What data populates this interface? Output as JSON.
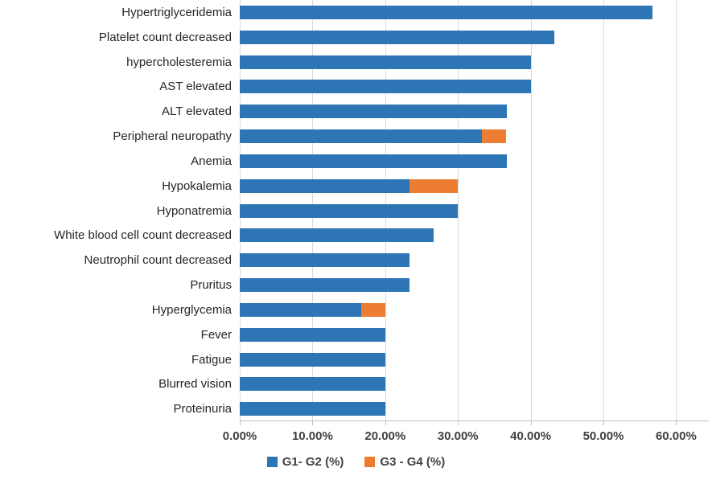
{
  "chart_data": {
    "type": "bar",
    "orientation": "horizontal",
    "stacked": true,
    "title": "",
    "xlabel": "",
    "ylabel": "",
    "categories": [
      "Hypertriglyceridemia",
      "Platelet count decreased",
      "hypercholesteremia",
      "AST elevated",
      "ALT elevated",
      "Peripheral neuropathy",
      "Anemia",
      "Hypokalemia",
      "Hyponatremia",
      "White blood cell count decreased",
      "Neutrophil count decreased",
      "Pruritus",
      "Hyperglycemia",
      "Fever",
      "Fatigue",
      "Blurred vision",
      "Proteinuria"
    ],
    "series": [
      {
        "name": "G1- G2 (%)",
        "color": "#2e75b6",
        "values": [
          56.7,
          43.3,
          40,
          40,
          36.7,
          33.3,
          36.7,
          23.3,
          30,
          26.7,
          23.3,
          23.3,
          16.7,
          20,
          20,
          20,
          20
        ]
      },
      {
        "name": "G3 - G4 (%)",
        "color": "#ed7d31",
        "values": [
          0,
          0,
          0,
          0,
          0,
          3.3,
          0,
          6.7,
          0,
          0,
          0,
          0,
          3.3,
          0,
          0,
          0,
          0
        ]
      }
    ],
    "x_ticks": [
      "0.00%",
      "10.00%",
      "20.00%",
      "30.00%",
      "40.00%",
      "50.00%",
      "60.00%"
    ],
    "xlim": [
      0,
      60
    ],
    "grid": "vertical",
    "gridline_color": "#d9d9d9",
    "axis_color": "#bfbfbf",
    "legend_position": "bottom"
  },
  "legend": {
    "items": [
      {
        "label": "G1- G2 (%)",
        "color": "#2e75b6"
      },
      {
        "label": "G3 - G4 (%)",
        "color": "#ed7d31"
      }
    ]
  }
}
